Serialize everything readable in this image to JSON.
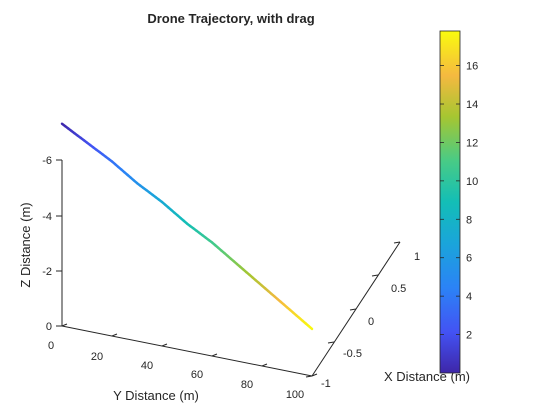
{
  "chart_data": {
    "type": "line",
    "title": "Drone Trajectory, with drag",
    "xlabel": "X Distance (m)",
    "ylabel": "Y Distance (m)",
    "zlabel": "Z Distance (m)",
    "x_ticks": [
      "-1",
      "-0.5",
      "0",
      "0.5",
      "1"
    ],
    "y_ticks": [
      "0",
      "20",
      "40",
      "60",
      "80",
      "100"
    ],
    "z_ticks": [
      "0",
      "-2",
      "-4",
      "-6"
    ],
    "xlim": [
      -1,
      1
    ],
    "ylim": [
      0,
      100
    ],
    "zlim": [
      -6,
      0
    ],
    "z_axis_reversed": true,
    "grid": false,
    "series": [
      {
        "x": [
          0,
          0,
          0,
          0,
          0,
          0,
          0,
          0,
          0,
          0,
          0
        ],
        "y": [
          0,
          10,
          20,
          30,
          40,
          50,
          60,
          70,
          80,
          90,
          100
        ],
        "z": [
          -7.3,
          -6.8,
          -6.3,
          -5.7,
          -5.2,
          -4.6,
          -4.1,
          -3.5,
          -2.9,
          -2.3,
          -1.7
        ],
        "time": [
          0,
          1.78,
          3.56,
          5.34,
          7.12,
          8.9,
          10.68,
          12.46,
          14.24,
          16.02,
          17.8
        ]
      }
    ],
    "colorbar": {
      "colormap": "parula",
      "min": 0,
      "max": 17.8,
      "ticks": [
        "2",
        "4",
        "6",
        "8",
        "10",
        "12",
        "14",
        "16"
      ],
      "tick_values": [
        2,
        4,
        6,
        8,
        10,
        12,
        14,
        16
      ]
    }
  }
}
